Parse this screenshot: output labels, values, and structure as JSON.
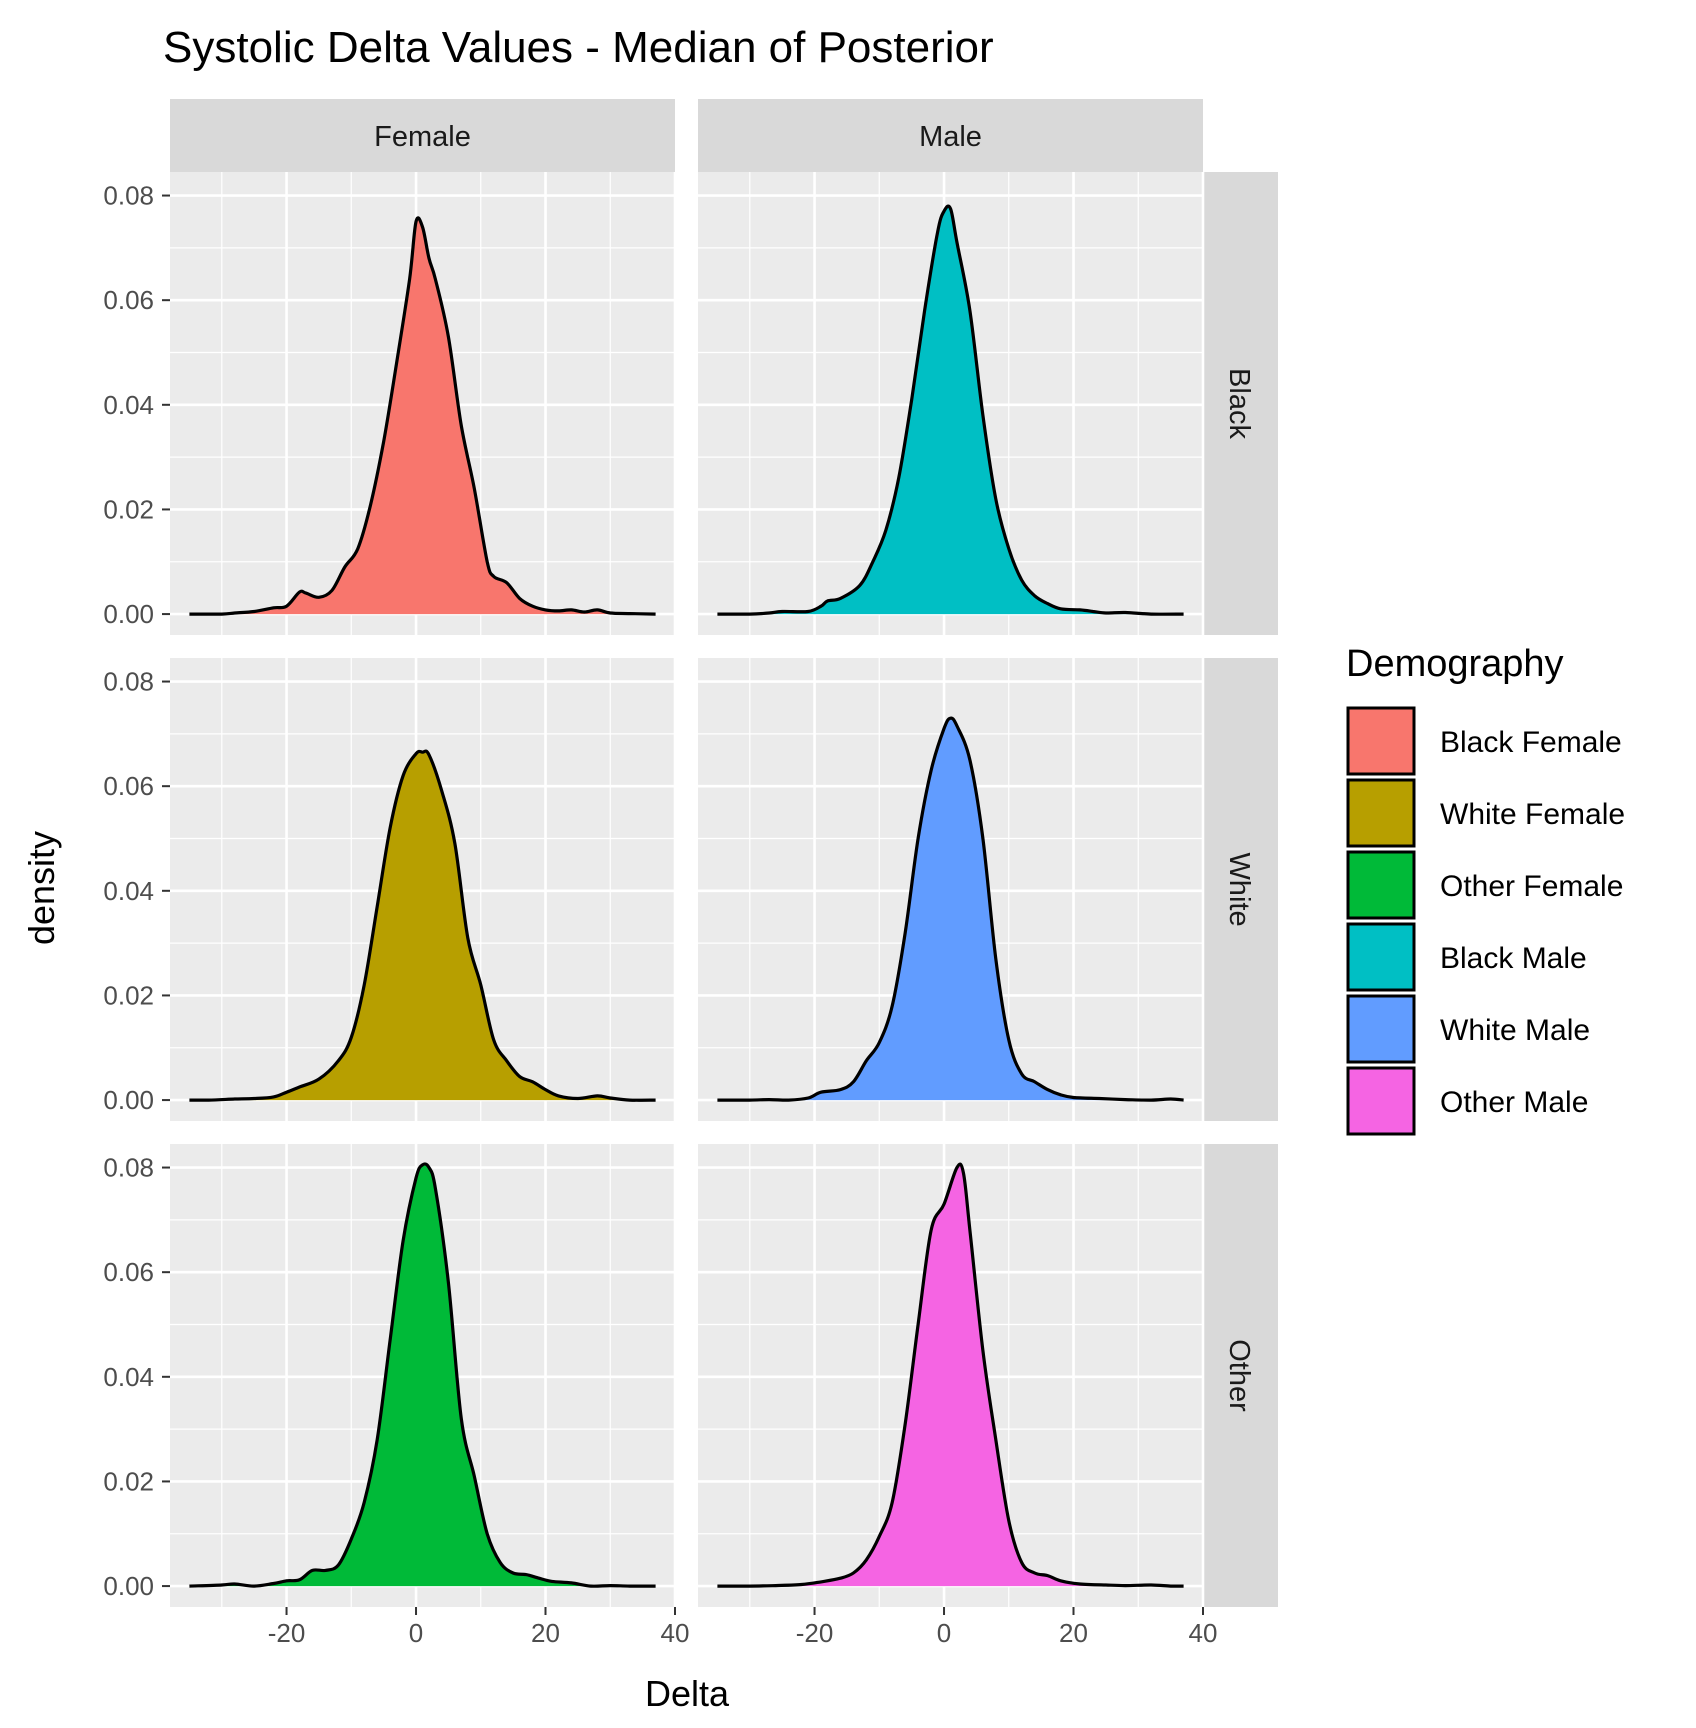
{
  "chart_data": {
    "type": "area",
    "subtype": "faceted density plot",
    "title": "Systolic Delta Values - Median of Posterior",
    "xlabel": "Delta",
    "ylabel": "density",
    "xlim": [
      -38,
      40
    ],
    "ylim": [
      -0.004,
      0.0845
    ],
    "x_ticks": [
      -20,
      0,
      20,
      40
    ],
    "x_tick_labels": [
      "-20",
      "0",
      "20",
      "40"
    ],
    "y_ticks": [
      0.0,
      0.02,
      0.04,
      0.06,
      0.08
    ],
    "y_tick_labels": [
      "0.00",
      "0.02",
      "0.04",
      "0.06",
      "0.08"
    ],
    "grid": true,
    "panel_background": "#ebebeb",
    "strip_background": "#d9d9d9",
    "line_color": "#000000",
    "facet_columns": [
      "Female",
      "Male"
    ],
    "facet_rows": [
      "Black",
      "White",
      "Other"
    ],
    "legend": {
      "title": "Demography",
      "position": "right",
      "entries": [
        {
          "label": "Black Female",
          "color": "#F8766D"
        },
        {
          "label": "White Female",
          "color": "#B79F00"
        },
        {
          "label": "Other Female",
          "color": "#00BA38"
        },
        {
          "label": "Black Male",
          "color": "#00BFC4"
        },
        {
          "label": "White Male",
          "color": "#619CFF"
        },
        {
          "label": "Other Male",
          "color": "#F564E3"
        }
      ]
    },
    "series": [
      {
        "name": "Black Female",
        "row": "Black",
        "col": "Female",
        "color": "#F8766D",
        "points": [
          [
            -35,
            0
          ],
          [
            -30,
            0
          ],
          [
            -28,
            0.0002
          ],
          [
            -25,
            0.0005
          ],
          [
            -22,
            0.0012
          ],
          [
            -20,
            0.0015
          ],
          [
            -18,
            0.0042
          ],
          [
            -17,
            0.004
          ],
          [
            -15,
            0.0032
          ],
          [
            -13,
            0.0045
          ],
          [
            -11,
            0.009
          ],
          [
            -9,
            0.0125
          ],
          [
            -7,
            0.021
          ],
          [
            -5,
            0.033
          ],
          [
            -3,
            0.048
          ],
          [
            -1,
            0.064
          ],
          [
            0,
            0.075
          ],
          [
            1,
            0.074
          ],
          [
            2,
            0.068
          ],
          [
            3,
            0.064
          ],
          [
            5,
            0.053
          ],
          [
            7,
            0.036
          ],
          [
            9,
            0.024
          ],
          [
            11,
            0.01
          ],
          [
            12,
            0.0072
          ],
          [
            14,
            0.006
          ],
          [
            16,
            0.003
          ],
          [
            18,
            0.0015
          ],
          [
            20,
            0.0008
          ],
          [
            22,
            0.0006
          ],
          [
            24,
            0.0008
          ],
          [
            26,
            0.0004
          ],
          [
            28,
            0.0008
          ],
          [
            30,
            0.0002
          ],
          [
            33,
            0.0001
          ],
          [
            37,
            0
          ]
        ]
      },
      {
        "name": "White Female",
        "row": "White",
        "col": "Female",
        "color": "#B79F00",
        "points": [
          [
            -35,
            0
          ],
          [
            -32,
            0
          ],
          [
            -28,
            0.0002
          ],
          [
            -25,
            0.0003
          ],
          [
            -22,
            0.0006
          ],
          [
            -20,
            0.0015
          ],
          [
            -18,
            0.0025
          ],
          [
            -15,
            0.004
          ],
          [
            -12,
            0.0075
          ],
          [
            -10,
            0.012
          ],
          [
            -8,
            0.022
          ],
          [
            -6,
            0.037
          ],
          [
            -4,
            0.052
          ],
          [
            -2,
            0.062
          ],
          [
            0,
            0.0662
          ],
          [
            1,
            0.0665
          ],
          [
            2,
            0.066
          ],
          [
            4,
            0.059
          ],
          [
            6,
            0.049
          ],
          [
            8,
            0.031
          ],
          [
            10,
            0.022
          ],
          [
            12,
            0.0115
          ],
          [
            14,
            0.0075
          ],
          [
            16,
            0.0045
          ],
          [
            18,
            0.0035
          ],
          [
            20,
            0.002
          ],
          [
            22,
            0.0008
          ],
          [
            25,
            0.0003
          ],
          [
            28,
            0.0008
          ],
          [
            30,
            0.0004
          ],
          [
            33,
            0
          ],
          [
            37,
            0
          ]
        ]
      },
      {
        "name": "Other Female",
        "row": "Other",
        "col": "Female",
        "color": "#00BA38",
        "points": [
          [
            -35,
            0
          ],
          [
            -30,
            0.0002
          ],
          [
            -28,
            0.0004
          ],
          [
            -25,
            0
          ],
          [
            -22,
            0.0005
          ],
          [
            -20,
            0.001
          ],
          [
            -18,
            0.0012
          ],
          [
            -16,
            0.003
          ],
          [
            -14,
            0.003
          ],
          [
            -12,
            0.004
          ],
          [
            -10,
            0.009
          ],
          [
            -8,
            0.016
          ],
          [
            -6,
            0.028
          ],
          [
            -4,
            0.047
          ],
          [
            -2,
            0.066
          ],
          [
            0,
            0.078
          ],
          [
            1,
            0.0805
          ],
          [
            2,
            0.08
          ],
          [
            3,
            0.076
          ],
          [
            5,
            0.058
          ],
          [
            7,
            0.032
          ],
          [
            9,
            0.021
          ],
          [
            11,
            0.01
          ],
          [
            13,
            0.0045
          ],
          [
            15,
            0.0025
          ],
          [
            17,
            0.0022
          ],
          [
            19,
            0.0015
          ],
          [
            21,
            0.0009
          ],
          [
            24,
            0.0006
          ],
          [
            27,
            0
          ],
          [
            30,
            0.0001
          ],
          [
            33,
            0
          ],
          [
            37,
            0
          ]
        ]
      },
      {
        "name": "Black Male",
        "row": "Black",
        "col": "Male",
        "color": "#00BFC4",
        "points": [
          [
            -35,
            0
          ],
          [
            -30,
            0
          ],
          [
            -27,
            0.0002
          ],
          [
            -25,
            0.0005
          ],
          [
            -21,
            0.0005
          ],
          [
            -19,
            0.0015
          ],
          [
            -18,
            0.0025
          ],
          [
            -16,
            0.003
          ],
          [
            -13,
            0.0055
          ],
          [
            -11,
            0.01
          ],
          [
            -9,
            0.016
          ],
          [
            -7,
            0.026
          ],
          [
            -5,
            0.041
          ],
          [
            -3,
            0.058
          ],
          [
            -1,
            0.073
          ],
          [
            0,
            0.077
          ],
          [
            1,
            0.0775
          ],
          [
            2,
            0.071
          ],
          [
            4,
            0.058
          ],
          [
            6,
            0.038
          ],
          [
            8,
            0.022
          ],
          [
            10,
            0.0125
          ],
          [
            12,
            0.0065
          ],
          [
            14,
            0.0035
          ],
          [
            16,
            0.002
          ],
          [
            18,
            0.001
          ],
          [
            21,
            0.0008
          ],
          [
            23,
            0.0005
          ],
          [
            25,
            0.0002
          ],
          [
            28,
            0.0003
          ],
          [
            32,
            0
          ],
          [
            37,
            0
          ]
        ]
      },
      {
        "name": "White Male",
        "row": "White",
        "col": "Male",
        "color": "#619CFF",
        "points": [
          [
            -35,
            0
          ],
          [
            -30,
            0
          ],
          [
            -27,
            0.0001
          ],
          [
            -24,
            0
          ],
          [
            -21,
            0.0004
          ],
          [
            -19,
            0.0015
          ],
          [
            -16,
            0.002
          ],
          [
            -14,
            0.0035
          ],
          [
            -12,
            0.0075
          ],
          [
            -10,
            0.011
          ],
          [
            -8,
            0.018
          ],
          [
            -6,
            0.032
          ],
          [
            -4,
            0.05
          ],
          [
            -2,
            0.063
          ],
          [
            0,
            0.071
          ],
          [
            1,
            0.073
          ],
          [
            2,
            0.0715
          ],
          [
            4,
            0.065
          ],
          [
            6,
            0.05
          ],
          [
            8,
            0.027
          ],
          [
            10,
            0.0115
          ],
          [
            12,
            0.005
          ],
          [
            14,
            0.0035
          ],
          [
            16,
            0.002
          ],
          [
            18,
            0.001
          ],
          [
            20,
            0.0005
          ],
          [
            24,
            0.0003
          ],
          [
            28,
            0.0001
          ],
          [
            32,
            0
          ],
          [
            35,
            0.0002
          ],
          [
            37,
            0
          ]
        ]
      },
      {
        "name": "Other Male",
        "row": "Other",
        "col": "Male",
        "color": "#F564E3",
        "points": [
          [
            -35,
            0
          ],
          [
            -30,
            0
          ],
          [
            -26,
            0.0001
          ],
          [
            -22,
            0.0003
          ],
          [
            -19,
            0.0008
          ],
          [
            -16,
            0.0015
          ],
          [
            -14,
            0.0025
          ],
          [
            -12,
            0.005
          ],
          [
            -10,
            0.0095
          ],
          [
            -8,
            0.016
          ],
          [
            -6,
            0.031
          ],
          [
            -4,
            0.05
          ],
          [
            -2,
            0.068
          ],
          [
            0,
            0.073
          ],
          [
            2,
            0.08
          ],
          [
            3,
            0.079
          ],
          [
            4,
            0.068
          ],
          [
            6,
            0.045
          ],
          [
            8,
            0.028
          ],
          [
            10,
            0.0125
          ],
          [
            12,
            0.0045
          ],
          [
            14,
            0.0025
          ],
          [
            16,
            0.002
          ],
          [
            18,
            0.001
          ],
          [
            21,
            0.0004
          ],
          [
            25,
            0.0002
          ],
          [
            28,
            0.0001
          ],
          [
            32,
            0.0002
          ],
          [
            35,
            0
          ],
          [
            37,
            0
          ]
        ]
      }
    ]
  }
}
